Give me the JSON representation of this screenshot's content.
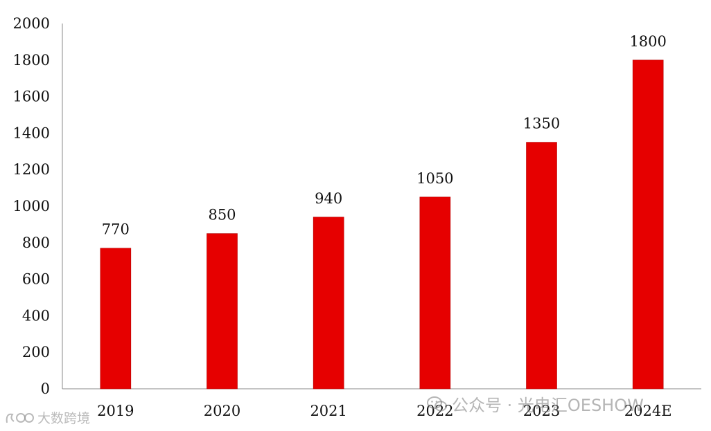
{
  "chart_data": {
    "type": "bar",
    "categories": [
      "2019",
      "2020",
      "2021",
      "2022",
      "2023",
      "2024E"
    ],
    "values": [
      770,
      850,
      940,
      1050,
      1350,
      1800
    ],
    "data_labels": [
      "770",
      "850",
      "940",
      "1050",
      "1350",
      "1800"
    ],
    "y_ticks": [
      "0",
      "200",
      "400",
      "600",
      "800",
      "1000",
      "1200",
      "1400",
      "1600",
      "1800",
      "2000"
    ],
    "ylim": [
      0,
      2000
    ],
    "title": "",
    "xlabel": "",
    "ylabel": "",
    "grid": false,
    "bar_color": "#e60000"
  },
  "watermarks": {
    "wechat": "公众号 · 光电汇OESHOW",
    "bigdata": "大数跨境"
  }
}
